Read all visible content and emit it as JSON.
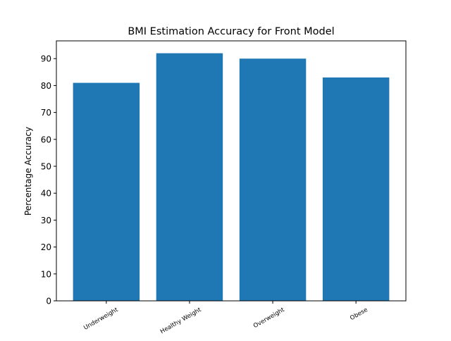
{
  "chart_data": {
    "type": "bar",
    "title": "BMI Estimation Accuracy for Front Model",
    "xlabel": "",
    "ylabel": "Percentage Accuracy",
    "categories": [
      "Underweight",
      "Healthy Weight",
      "Overweight",
      "Obese"
    ],
    "values": [
      81,
      92,
      90,
      83
    ],
    "ylim": [
      0,
      96.6
    ],
    "yticks": [
      0,
      10,
      20,
      30,
      40,
      50,
      60,
      70,
      80,
      90
    ],
    "grid": false,
    "legend": "none",
    "bar_color": "#1f77b4"
  }
}
